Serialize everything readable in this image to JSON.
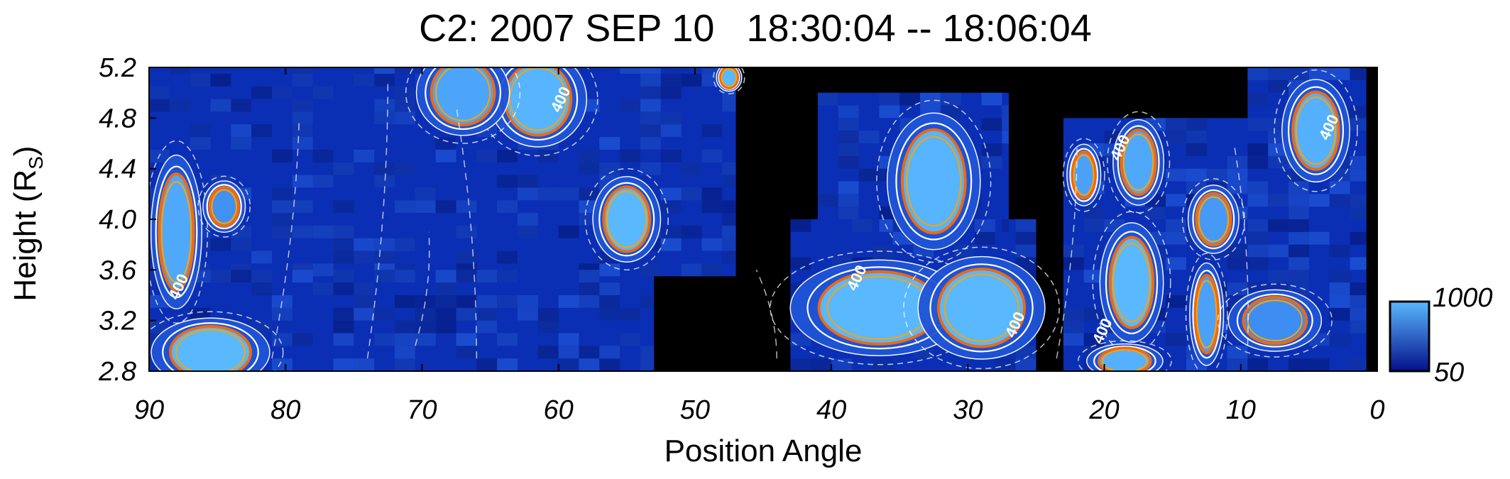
{
  "chart_data": {
    "type": "heatmap",
    "title": "C2: 2007 SEP 10   18:30:04 -- 18:06:04",
    "xlabel": "Position Angle",
    "ylabel": "Height (R",
    "ylabel_sub": "S",
    "ylabel_end": ")",
    "xlim": [
      90,
      0
    ],
    "ylim": [
      2.8,
      5.2
    ],
    "x_ticks": [
      90,
      80,
      70,
      60,
      50,
      40,
      30,
      20,
      10,
      0
    ],
    "x_tick_labels": [
      "90",
      "80",
      "70",
      "60",
      "50",
      "40",
      "30",
      "20",
      "10",
      "0"
    ],
    "y_ticks": [
      2.8,
      3.2,
      3.6,
      4.0,
      4.4,
      4.8,
      5.2
    ],
    "y_tick_labels": [
      "2.8",
      "3.2",
      "3.6",
      "4.0",
      "4.4",
      "4.8",
      "5.2"
    ],
    "colorbar": {
      "min": 50,
      "max": 1000,
      "min_label": "50",
      "max_label": "1000",
      "low_color": "#04108a",
      "high_color": "#5ab8ff"
    },
    "background_color": "#000000",
    "field_color": "#0a2fb4",
    "contour_colors": {
      "white": "#ffffff",
      "orange": "#ee6a10",
      "amber": "#ffa200"
    },
    "contour_labels": [
      {
        "pa": 87.5,
        "h": 3.45,
        "text": "400"
      },
      {
        "pa": 37.8,
        "h": 3.52,
        "text": "400"
      },
      {
        "pa": 59.5,
        "h": 4.93,
        "text": "400"
      },
      {
        "pa": 18.5,
        "h": 4.55,
        "text": "400"
      },
      {
        "pa": 3.2,
        "h": 4.71,
        "text": "400"
      },
      {
        "pa": 26.2,
        "h": 3.15,
        "text": "400"
      },
      {
        "pa": 19.8,
        "h": 3.1,
        "text": "400"
      }
    ],
    "data_regions": [
      {
        "pa": [
          90,
          47
        ],
        "h": [
          3.55,
          5.2
        ]
      },
      {
        "pa": [
          90,
          53
        ],
        "h": [
          2.8,
          3.6
        ]
      },
      {
        "pa": [
          41,
          27
        ],
        "h": [
          3.9,
          5.0
        ]
      },
      {
        "pa": [
          43,
          25
        ],
        "h": [
          2.8,
          4.0
        ]
      },
      {
        "pa": [
          23,
          0.8
        ],
        "h": [
          2.8,
          4.8
        ]
      },
      {
        "pa": [
          9.5,
          0.8
        ],
        "h": [
          3.0,
          5.2
        ]
      }
    ],
    "bright_regions": [
      {
        "pa": 85.5,
        "h": 2.95,
        "rpa": 2.8,
        "rh": 0.2,
        "v": 1000
      },
      {
        "pa": 88.0,
        "h": 3.9,
        "rpa": 1.2,
        "rh": 0.45,
        "v": 800
      },
      {
        "pa": 61.5,
        "h": 4.95,
        "rpa": 2.3,
        "rh": 0.28,
        "v": 950
      },
      {
        "pa": 67.0,
        "h": 5.0,
        "rpa": 2.2,
        "rh": 0.25,
        "v": 750
      },
      {
        "pa": 55.0,
        "h": 4.0,
        "rpa": 1.6,
        "rh": 0.25,
        "v": 1000
      },
      {
        "pa": 47.5,
        "h": 5.12,
        "rpa": 0.6,
        "rh": 0.08,
        "v": 1000
      },
      {
        "pa": 36.5,
        "h": 3.3,
        "rpa": 4.2,
        "rh": 0.28,
        "v": 1000
      },
      {
        "pa": 29.0,
        "h": 3.3,
        "rpa": 3.0,
        "rh": 0.3,
        "v": 1000
      },
      {
        "pa": 32.5,
        "h": 4.3,
        "rpa": 2.2,
        "rh": 0.4,
        "v": 950
      },
      {
        "pa": 18.0,
        "h": 3.5,
        "rpa": 1.5,
        "rh": 0.35,
        "v": 1000
      },
      {
        "pa": 18.5,
        "h": 2.88,
        "rpa": 1.8,
        "rh": 0.1,
        "v": 900
      },
      {
        "pa": 17.5,
        "h": 4.45,
        "rpa": 1.2,
        "rh": 0.25,
        "v": 800
      },
      {
        "pa": 21.5,
        "h": 4.35,
        "rpa": 0.8,
        "rh": 0.18,
        "v": 700
      },
      {
        "pa": 12.5,
        "h": 3.25,
        "rpa": 0.8,
        "rh": 0.3,
        "v": 700
      },
      {
        "pa": 12.0,
        "h": 4.0,
        "rpa": 1.2,
        "rh": 0.2,
        "v": 600
      },
      {
        "pa": 4.5,
        "h": 4.7,
        "rpa": 1.6,
        "rh": 0.3,
        "v": 900
      },
      {
        "pa": 84.5,
        "h": 4.1,
        "rpa": 1.0,
        "rh": 0.15,
        "v": 500
      },
      {
        "pa": 7.5,
        "h": 3.2,
        "rpa": 2.2,
        "rh": 0.18,
        "v": 450
      }
    ]
  }
}
